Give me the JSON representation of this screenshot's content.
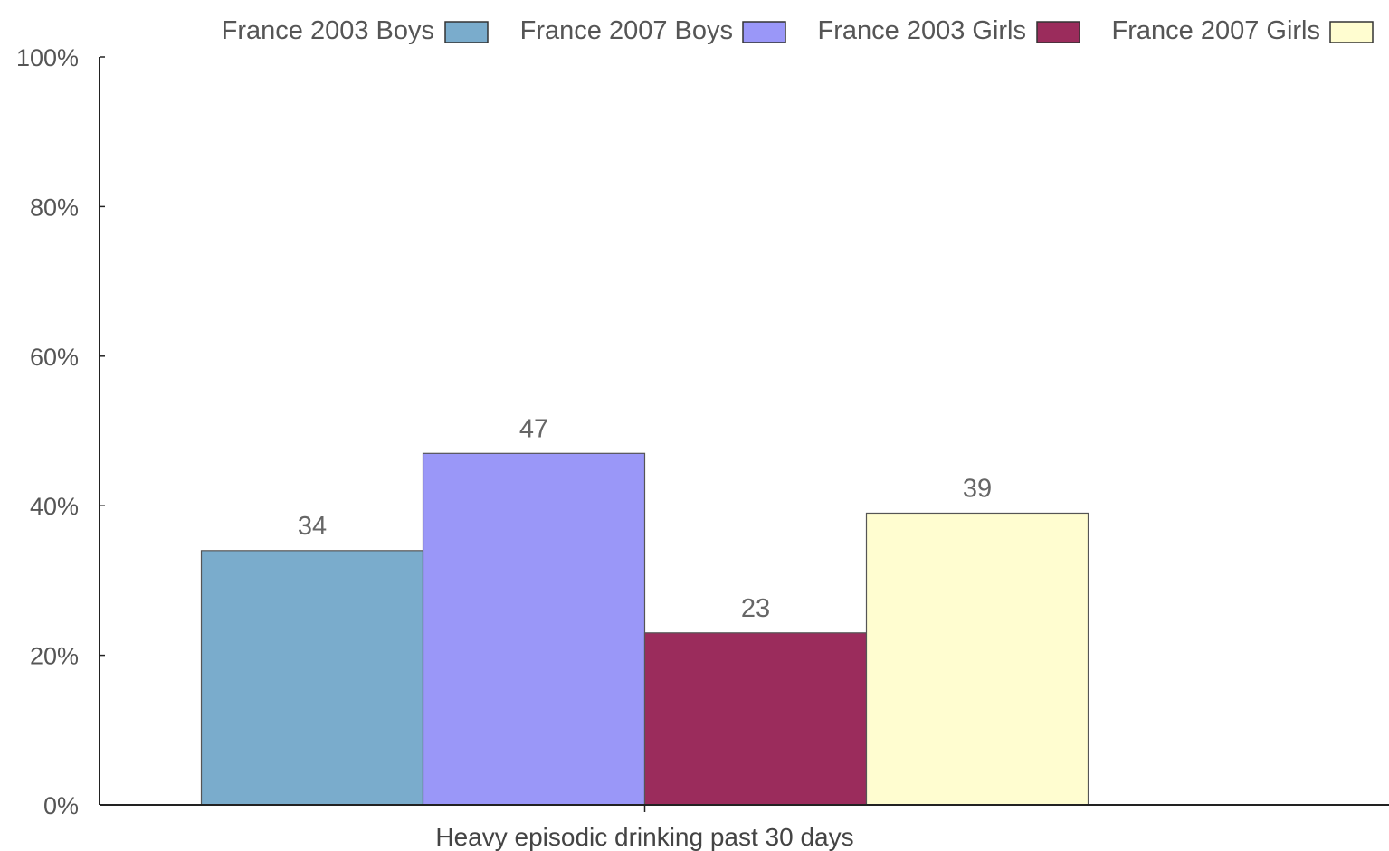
{
  "chart_data": {
    "type": "bar",
    "categories": [
      "Heavy episodic drinking past 30 days"
    ],
    "series": [
      {
        "name": "France 2003 Boys",
        "values": [
          34
        ],
        "color": "#7aaccc"
      },
      {
        "name": "France 2007 Boys",
        "values": [
          47
        ],
        "color": "#9a97f8"
      },
      {
        "name": "France 2003 Girls",
        "values": [
          23
        ],
        "color": "#9b2c5c"
      },
      {
        "name": "France 2007 Girls",
        "values": [
          39
        ],
        "color": "#fffdd0"
      }
    ],
    "y_ticks": [
      "0%",
      "20%",
      "40%",
      "60%",
      "80%",
      "100%"
    ],
    "ylim": [
      0,
      100
    ],
    "value_labels": [
      "34",
      "47",
      "23",
      "39"
    ],
    "legend_position": "top-right",
    "grid": false,
    "title": "",
    "xlabel": "",
    "ylabel": ""
  }
}
